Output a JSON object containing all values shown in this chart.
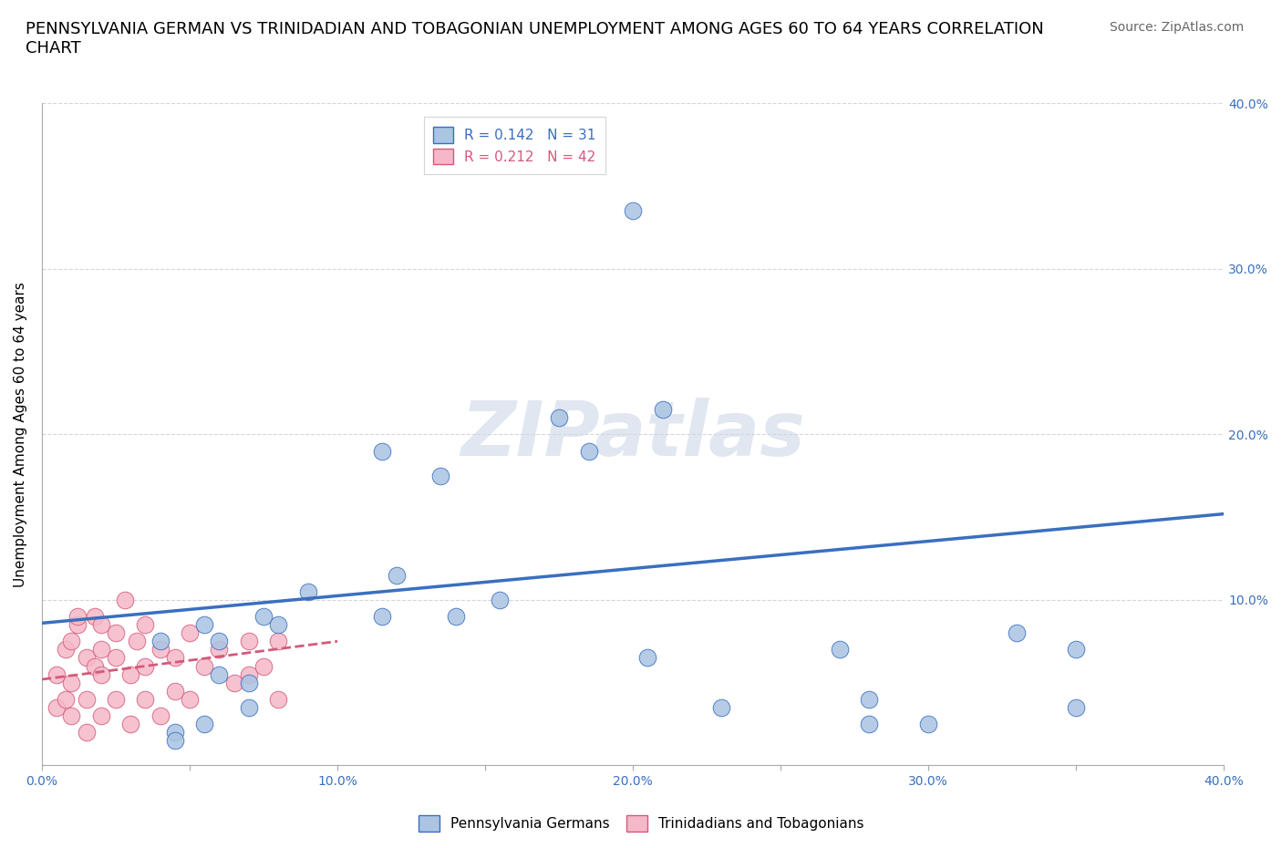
{
  "title": "PENNSYLVANIA GERMAN VS TRINIDADIAN AND TOBAGONIAN UNEMPLOYMENT AMONG AGES 60 TO 64 YEARS CORRELATION\nCHART",
  "source_text": "Source: ZipAtlas.com",
  "ylabel": "Unemployment Among Ages 60 to 64 years",
  "xlim": [
    0.0,
    0.4
  ],
  "ylim": [
    0.0,
    0.4
  ],
  "blue_scatter_x": [
    0.055,
    0.075,
    0.04,
    0.06,
    0.06,
    0.07,
    0.07,
    0.055,
    0.045,
    0.045,
    0.08,
    0.09,
    0.115,
    0.12,
    0.115,
    0.135,
    0.14,
    0.155,
    0.175,
    0.185,
    0.2,
    0.21,
    0.205,
    0.23,
    0.27,
    0.28,
    0.28,
    0.3,
    0.33,
    0.35,
    0.35
  ],
  "blue_scatter_y": [
    0.085,
    0.09,
    0.075,
    0.075,
    0.055,
    0.05,
    0.035,
    0.025,
    0.02,
    0.015,
    0.085,
    0.105,
    0.09,
    0.115,
    0.19,
    0.175,
    0.09,
    0.1,
    0.21,
    0.19,
    0.335,
    0.215,
    0.065,
    0.035,
    0.07,
    0.04,
    0.025,
    0.025,
    0.08,
    0.07,
    0.035
  ],
  "pink_scatter_x": [
    0.005,
    0.005,
    0.008,
    0.008,
    0.01,
    0.01,
    0.01,
    0.012,
    0.012,
    0.015,
    0.015,
    0.015,
    0.018,
    0.018,
    0.02,
    0.02,
    0.02,
    0.02,
    0.025,
    0.025,
    0.025,
    0.028,
    0.03,
    0.03,
    0.032,
    0.035,
    0.035,
    0.035,
    0.04,
    0.04,
    0.045,
    0.045,
    0.05,
    0.05,
    0.055,
    0.06,
    0.065,
    0.07,
    0.07,
    0.075,
    0.08,
    0.08
  ],
  "pink_scatter_y": [
    0.035,
    0.055,
    0.04,
    0.07,
    0.03,
    0.05,
    0.075,
    0.085,
    0.09,
    0.02,
    0.04,
    0.065,
    0.06,
    0.09,
    0.03,
    0.055,
    0.07,
    0.085,
    0.04,
    0.065,
    0.08,
    0.1,
    0.025,
    0.055,
    0.075,
    0.04,
    0.06,
    0.085,
    0.03,
    0.07,
    0.045,
    0.065,
    0.04,
    0.08,
    0.06,
    0.07,
    0.05,
    0.055,
    0.075,
    0.06,
    0.04,
    0.075
  ],
  "blue_line_x": [
    0.0,
    0.4
  ],
  "blue_line_y": [
    0.086,
    0.152
  ],
  "pink_line_x": [
    0.0,
    0.1
  ],
  "pink_line_y": [
    0.052,
    0.075
  ],
  "legend_blue_r": "0.142",
  "legend_blue_n": "31",
  "legend_pink_r": "0.212",
  "legend_pink_n": "42",
  "blue_color": "#aac4e2",
  "blue_line_color": "#3a6fbf",
  "pink_color": "#f5b8c8",
  "pink_line_color": "#d45a7a",
  "legend_text_blue": "#3a6fbf",
  "legend_text_pink": "#d45a7a",
  "axis_tick_color": "#3a6fbf",
  "grid_color": "#cccccc",
  "background_color": "#ffffff",
  "watermark_text": "ZIPatlas",
  "watermark_color": "#ccd8e8",
  "title_fontsize": 13,
  "source_fontsize": 10,
  "label_fontsize": 11,
  "tick_fontsize": 10,
  "scatter_size": 180
}
